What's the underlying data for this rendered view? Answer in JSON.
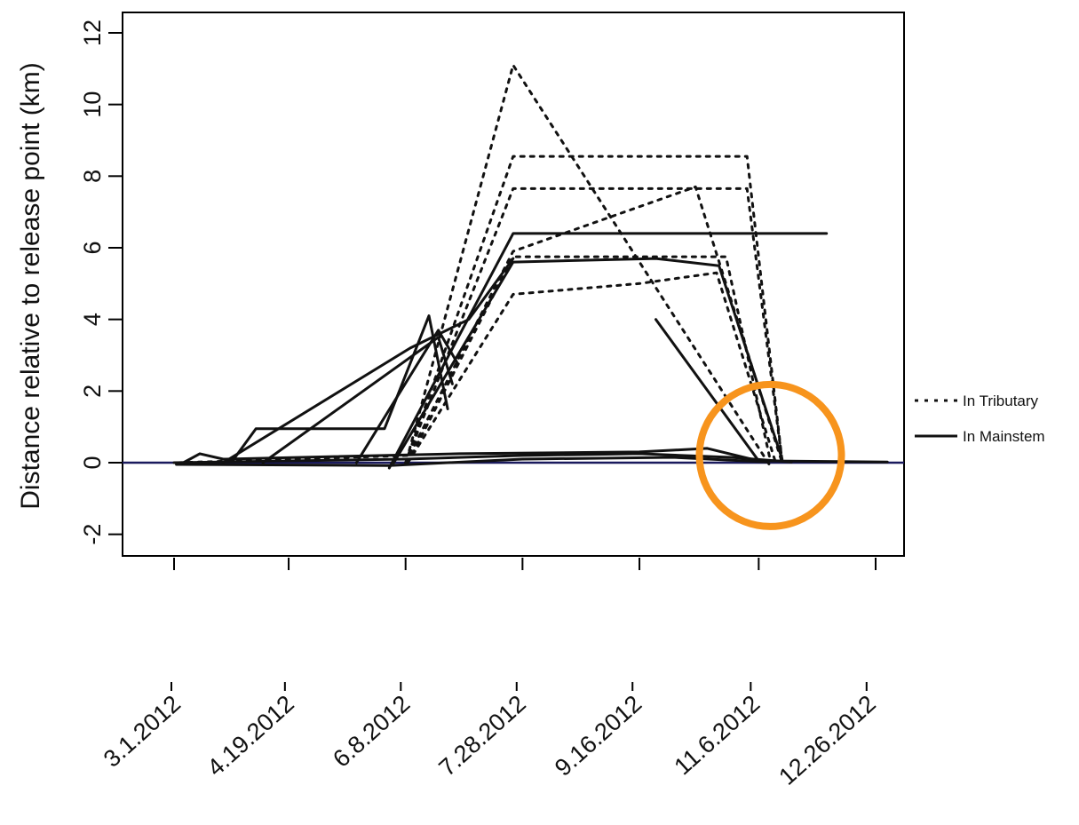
{
  "chart_data": {
    "type": "line",
    "title": "",
    "xlabel": "",
    "ylabel": "Distance relative to release point (km)",
    "ylim": [
      -2.5,
      12.7
    ],
    "xlim": [
      "2012-02-20",
      "2013-01-10"
    ],
    "yticks": [
      -2,
      0,
      2,
      4,
      6,
      8,
      10,
      12
    ],
    "xticks": [
      {
        "date": "2012-03-01",
        "label": "3.1.2012"
      },
      {
        "date": "2012-04-19",
        "label": "4.19.2012"
      },
      {
        "date": "2012-06-08",
        "label": "6.8.2012"
      },
      {
        "date": "2012-07-28",
        "label": "7.28.2012"
      },
      {
        "date": "2012-09-16",
        "label": "9.16.2012"
      },
      {
        "date": "2012-11-06",
        "label": "11.6.2012"
      },
      {
        "date": "2012-12-26",
        "label": "12.26.2012"
      }
    ],
    "grid": false,
    "legend_position": "right",
    "legend": [
      {
        "label": "In Tributary",
        "style": "dotted"
      },
      {
        "label": "In Mainstem",
        "style": "solid"
      }
    ],
    "reference_line": {
      "y": 0,
      "color": "#1a1a5e"
    },
    "annotation": {
      "shape": "circle",
      "color": "#f7941d",
      "center": {
        "x": "2012-11-11",
        "y": 0.2
      }
    },
    "series": [
      {
        "style": "dotted",
        "points": [
          [
            "2012-03-03",
            0
          ],
          [
            "2012-06-09",
            0.2
          ],
          [
            "2012-07-24",
            11.1
          ],
          [
            "2012-11-11",
            -0.1
          ]
        ]
      },
      {
        "style": "dotted",
        "points": [
          [
            "2012-06-08",
            0
          ],
          [
            "2012-07-24",
            8.55
          ],
          [
            "2012-11-01",
            8.55
          ],
          [
            "2012-11-16",
            0.05
          ]
        ]
      },
      {
        "style": "dotted",
        "points": [
          [
            "2012-06-08",
            0
          ],
          [
            "2012-07-24",
            7.65
          ],
          [
            "2012-11-01",
            7.65
          ],
          [
            "2012-11-16",
            0.05
          ]
        ]
      },
      {
        "style": "dotted",
        "points": [
          [
            "2012-06-09",
            0
          ],
          [
            "2012-07-24",
            5.75
          ],
          [
            "2012-10-23",
            5.75
          ],
          [
            "2012-11-11",
            0.05
          ]
        ]
      },
      {
        "style": "dotted",
        "points": [
          [
            "2012-06-09",
            0
          ],
          [
            "2012-07-24",
            4.7
          ],
          [
            "2012-09-16",
            5
          ],
          [
            "2012-10-19",
            5.3
          ],
          [
            "2012-11-13",
            0.05
          ]
        ]
      },
      {
        "style": "dotted",
        "points": [
          [
            "2012-06-08",
            0
          ],
          [
            "2012-07-24",
            5.9
          ],
          [
            "2012-10-10",
            7.7
          ],
          [
            "2012-11-16",
            0
          ]
        ]
      },
      {
        "style": "solid",
        "points": [
          [
            "2012-06-01",
            -0.15
          ],
          [
            "2012-07-24",
            6.4
          ],
          [
            "2012-12-05",
            6.4
          ]
        ]
      },
      {
        "style": "solid",
        "points": [
          [
            "2012-06-03",
            0
          ],
          [
            "2012-07-24",
            5.6
          ],
          [
            "2012-09-23",
            5.7
          ],
          [
            "2012-10-20",
            5.5
          ],
          [
            "2012-11-16",
            0.1
          ]
        ]
      },
      {
        "style": "solid",
        "points": [
          [
            "2012-03-22",
            0
          ],
          [
            "2012-06-10",
            3.2
          ],
          [
            "2012-07-05",
            4.0
          ],
          [
            "2012-07-24",
            5.7
          ]
        ]
      },
      {
        "style": "solid",
        "points": [
          [
            "2012-03-26",
            0.05
          ],
          [
            "2012-04-05",
            0.95
          ],
          [
            "2012-05-30",
            0.95
          ],
          [
            "2012-06-18",
            4.1
          ],
          [
            "2012-06-26",
            1.5
          ]
        ]
      },
      {
        "style": "solid",
        "points": [
          [
            "2012-04-08",
            0
          ],
          [
            "2012-06-22",
            3.5
          ],
          [
            "2012-06-28",
            2.2
          ]
        ]
      },
      {
        "style": "solid",
        "points": [
          [
            "2012-05-18",
            0
          ],
          [
            "2012-06-22",
            3.7
          ],
          [
            "2012-06-30",
            2.8
          ]
        ]
      },
      {
        "style": "solid",
        "points": [
          [
            "2012-09-23",
            4.0
          ],
          [
            "2012-11-06",
            0.05
          ]
        ]
      },
      {
        "style": "solid",
        "points": [
          [
            "2012-03-05",
            0
          ],
          [
            "2012-03-12",
            0.25
          ],
          [
            "2012-03-22",
            0.1
          ],
          [
            "2012-07-01",
            0.25
          ],
          [
            "2012-09-16",
            0.3
          ],
          [
            "2012-10-15",
            0.4
          ],
          [
            "2012-11-06",
            0.05
          ],
          [
            "2012-12-31",
            0.02
          ]
        ]
      },
      {
        "style": "solid",
        "points": [
          [
            "2012-03-01",
            0
          ],
          [
            "2012-06-08",
            0.1
          ],
          [
            "2012-07-28",
            0.2
          ],
          [
            "2012-09-16",
            0.25
          ],
          [
            "2012-10-25",
            0.15
          ],
          [
            "2012-11-20",
            0.02
          ]
        ]
      },
      {
        "style": "solid",
        "points": [
          [
            "2012-03-02",
            -0.05
          ],
          [
            "2012-06-01",
            -0.08
          ],
          [
            "2012-07-28",
            0.1
          ],
          [
            "2012-09-30",
            0.15
          ],
          [
            "2012-11-10",
            0.02
          ]
        ]
      }
    ]
  }
}
